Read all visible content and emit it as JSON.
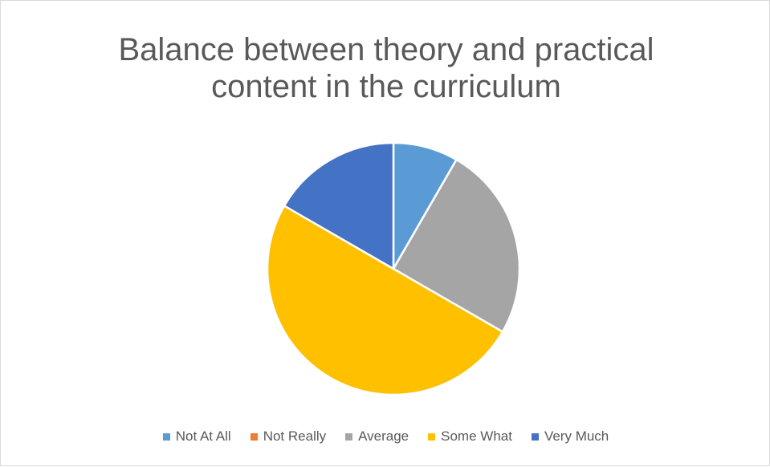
{
  "chart_data": {
    "type": "pie",
    "title": "Balance between theory and practical content in the curriculum",
    "categories": [
      "Not At All",
      "Not Really",
      "Average",
      "Some What",
      "Very Much"
    ],
    "values": [
      1,
      0,
      3,
      6,
      2
    ],
    "colors": [
      "#5b9bd5",
      "#ed7d31",
      "#a5a5a5",
      "#ffc000",
      "#4472c4"
    ],
    "legend": "bottom"
  }
}
